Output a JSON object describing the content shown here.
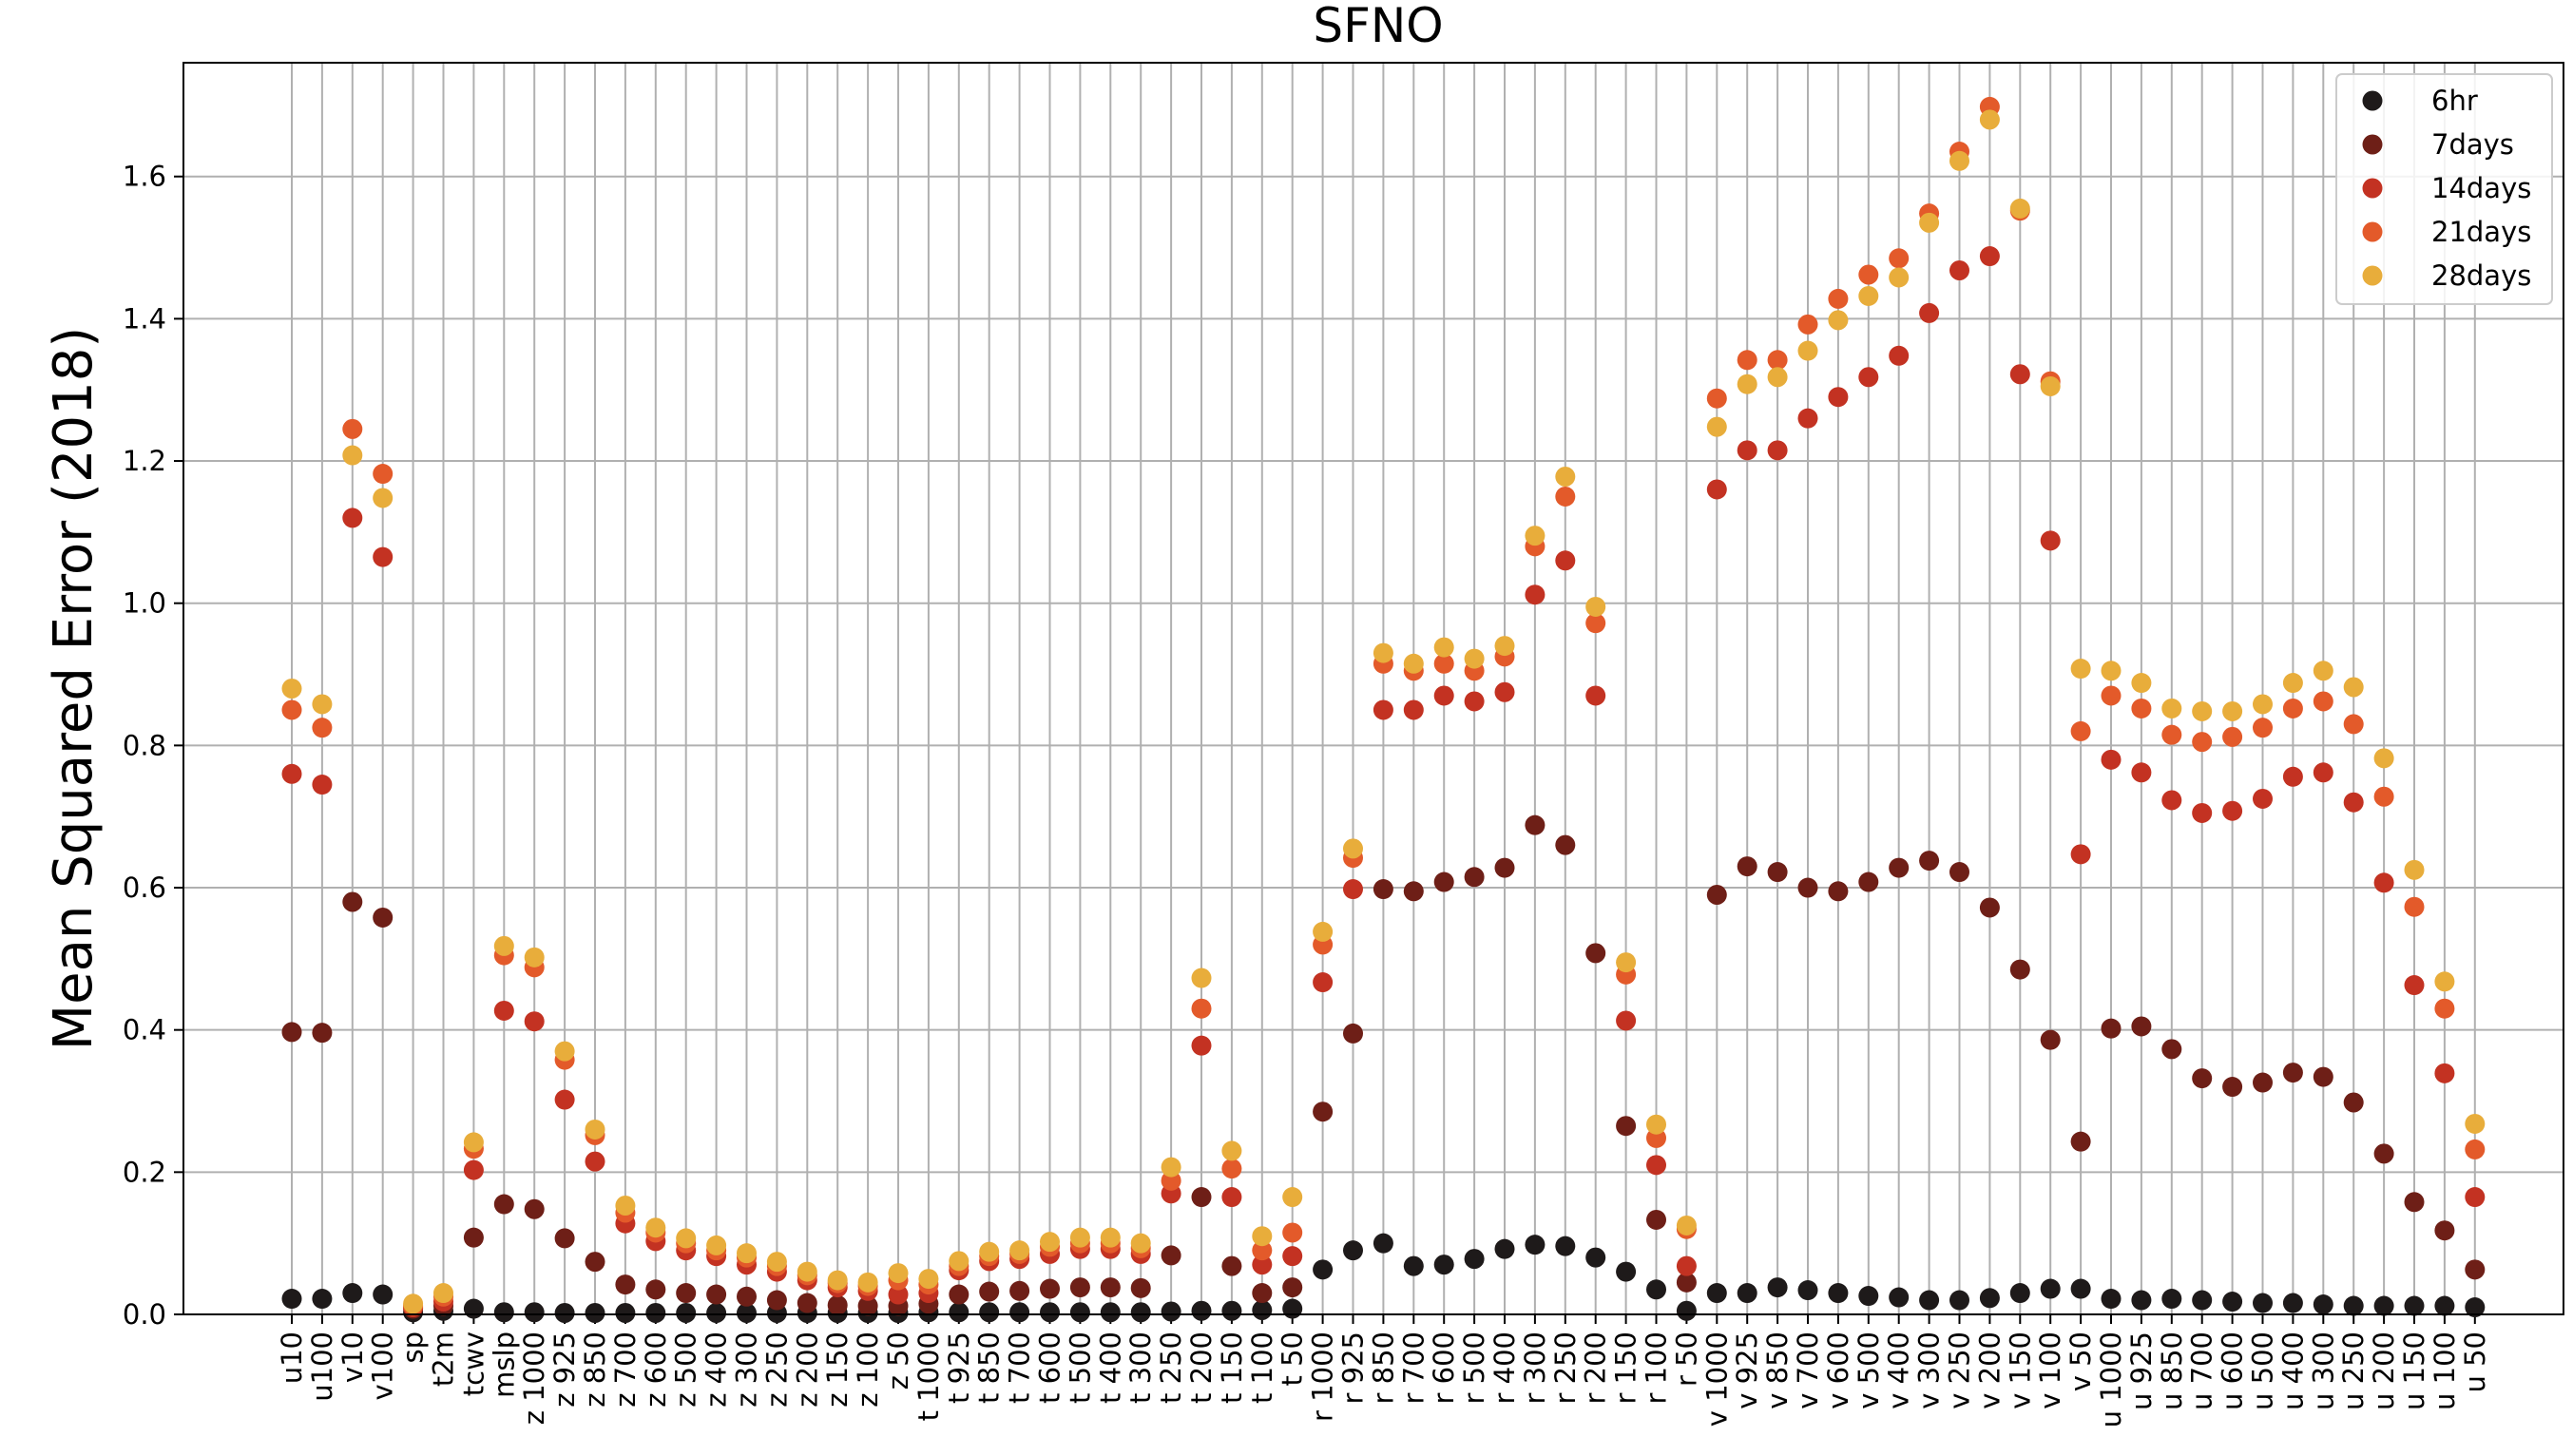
{
  "chart_data": {
    "type": "scatter",
    "title": "SFNO",
    "ylabel": "Mean Squared Error (2018)",
    "xlabel": "",
    "ylim": [
      0,
      1.76
    ],
    "yticks": [
      0.0,
      0.2,
      0.4,
      0.6,
      0.8,
      1.0,
      1.2,
      1.4,
      1.6
    ],
    "ytick_labels": [
      "0.0",
      "0.2",
      "0.4",
      "0.6",
      "0.8",
      "1.0",
      "1.2",
      "1.4",
      "1.6"
    ],
    "grid": true,
    "legend_position": "top-right",
    "categories": [
      "u10",
      "u100",
      "v10",
      "v100",
      "sp",
      "t2m",
      "tcwv",
      "mslp",
      "z 1000",
      "z 925",
      "z 850",
      "z 700",
      "z 600",
      "z 500",
      "z 400",
      "z 300",
      "z 250",
      "z 200",
      "z 150",
      "z 100",
      "z 50",
      "t 1000",
      "t 925",
      "t 850",
      "t 700",
      "t 600",
      "t 500",
      "t 400",
      "t 300",
      "t 250",
      "t 200",
      "t 150",
      "t 100",
      "t 50",
      "r 1000",
      "r 925",
      "r 850",
      "r 700",
      "r 600",
      "r 500",
      "r 400",
      "r 300",
      "r 250",
      "r 200",
      "r 150",
      "r 100",
      "r 50",
      "v 1000",
      "v 925",
      "v 850",
      "v 700",
      "v 600",
      "v 500",
      "v 400",
      "v 300",
      "v 250",
      "v 200",
      "v 150",
      "v 100",
      "v 50",
      "u 1000",
      "u 925",
      "u 850",
      "u 700",
      "u 600",
      "u 500",
      "u 400",
      "u 300",
      "u 250",
      "u 200",
      "u 150",
      "u 100",
      "u 50"
    ],
    "series": [
      {
        "name": "6hr",
        "color": "#1e1a1a",
        "values": [
          0.022,
          0.022,
          0.03,
          0.028,
          0.003,
          0.005,
          0.008,
          0.003,
          0.003,
          0.002,
          0.002,
          0.002,
          0.002,
          0.002,
          0.002,
          0.002,
          0.002,
          0.002,
          0.002,
          0.002,
          0.002,
          0.003,
          0.003,
          0.003,
          0.003,
          0.003,
          0.003,
          0.003,
          0.003,
          0.004,
          0.005,
          0.005,
          0.006,
          0.008,
          0.063,
          0.09,
          0.1,
          0.068,
          0.07,
          0.078,
          0.092,
          0.098,
          0.096,
          0.08,
          0.06,
          0.035,
          0.005,
          0.03,
          0.03,
          0.038,
          0.034,
          0.03,
          0.026,
          0.024,
          0.02,
          0.02,
          0.023,
          0.03,
          0.036,
          0.036,
          0.022,
          0.02,
          0.022,
          0.02,
          0.018,
          0.016,
          0.016,
          0.014,
          0.012,
          0.012,
          0.012,
          0.012,
          0.01
        ]
      },
      {
        "name": "7days",
        "color": "#6e1f17",
        "values": [
          0.397,
          0.396,
          0.58,
          0.558,
          0.008,
          0.012,
          0.108,
          0.155,
          0.148,
          0.107,
          0.074,
          0.042,
          0.035,
          0.03,
          0.028,
          0.025,
          0.02,
          0.016,
          0.013,
          0.012,
          0.012,
          0.015,
          0.028,
          0.032,
          0.033,
          0.036,
          0.038,
          0.038,
          0.037,
          0.083,
          0.165,
          0.068,
          0.03,
          0.038,
          0.285,
          0.395,
          0.598,
          0.595,
          0.608,
          0.615,
          0.628,
          0.688,
          0.66,
          0.508,
          0.265,
          0.133,
          0.045,
          0.59,
          0.63,
          0.622,
          0.6,
          0.595,
          0.608,
          0.628,
          0.638,
          0.622,
          0.572,
          0.485,
          0.386,
          0.243,
          0.402,
          0.405,
          0.373,
          0.332,
          0.32,
          0.326,
          0.34,
          0.334,
          0.298,
          0.226,
          0.158,
          0.118,
          0.063
        ]
      },
      {
        "name": "14days",
        "color": "#c33222",
        "values": [
          0.76,
          0.745,
          1.12,
          1.065,
          0.01,
          0.018,
          0.203,
          0.427,
          0.412,
          0.302,
          0.215,
          0.128,
          0.103,
          0.09,
          0.082,
          0.07,
          0.06,
          0.048,
          0.038,
          0.033,
          0.028,
          0.03,
          0.062,
          0.075,
          0.078,
          0.085,
          0.092,
          0.092,
          0.085,
          0.17,
          0.378,
          0.165,
          0.07,
          0.082,
          0.467,
          0.598,
          0.85,
          0.85,
          0.87,
          0.862,
          0.875,
          1.012,
          1.06,
          0.87,
          0.413,
          0.21,
          0.068,
          1.16,
          1.215,
          1.215,
          1.26,
          1.29,
          1.318,
          1.348,
          1.408,
          1.468,
          1.488,
          1.322,
          1.088,
          0.647,
          0.78,
          0.762,
          0.723,
          0.705,
          0.708,
          0.725,
          0.756,
          0.762,
          0.72,
          0.607,
          0.463,
          0.339,
          0.165
        ]
      },
      {
        "name": "21days",
        "color": "#e35a2a",
        "values": [
          0.85,
          0.825,
          1.245,
          1.182,
          0.012,
          0.025,
          0.233,
          0.505,
          0.488,
          0.358,
          0.252,
          0.143,
          0.115,
          0.1,
          0.09,
          0.08,
          0.068,
          0.055,
          0.044,
          0.04,
          0.048,
          0.042,
          0.068,
          0.082,
          0.085,
          0.095,
          0.1,
          0.1,
          0.093,
          0.188,
          0.43,
          0.205,
          0.09,
          0.115,
          0.52,
          0.642,
          0.915,
          0.905,
          0.915,
          0.905,
          0.925,
          1.08,
          1.15,
          0.972,
          0.478,
          0.248,
          0.12,
          1.288,
          1.342,
          1.342,
          1.392,
          1.428,
          1.462,
          1.485,
          1.548,
          1.635,
          1.698,
          1.552,
          1.312,
          0.82,
          0.87,
          0.852,
          0.815,
          0.805,
          0.812,
          0.825,
          0.852,
          0.862,
          0.83,
          0.728,
          0.573,
          0.43,
          0.232
        ]
      },
      {
        "name": "28days",
        "color": "#e8ad3b",
        "values": [
          0.88,
          0.858,
          1.208,
          1.148,
          0.015,
          0.03,
          0.242,
          0.518,
          0.502,
          0.37,
          0.26,
          0.153,
          0.122,
          0.107,
          0.097,
          0.086,
          0.074,
          0.06,
          0.048,
          0.045,
          0.058,
          0.05,
          0.075,
          0.088,
          0.09,
          0.102,
          0.108,
          0.108,
          0.1,
          0.207,
          0.473,
          0.23,
          0.11,
          0.165,
          0.538,
          0.655,
          0.93,
          0.915,
          0.938,
          0.922,
          0.94,
          1.095,
          1.178,
          0.995,
          0.495,
          0.267,
          0.125,
          1.248,
          1.308,
          1.318,
          1.355,
          1.398,
          1.432,
          1.458,
          1.535,
          1.622,
          1.68,
          1.555,
          1.305,
          0.908,
          0.905,
          0.888,
          0.852,
          0.848,
          0.848,
          0.858,
          0.888,
          0.905,
          0.882,
          0.782,
          0.625,
          0.468,
          0.268
        ]
      }
    ]
  }
}
